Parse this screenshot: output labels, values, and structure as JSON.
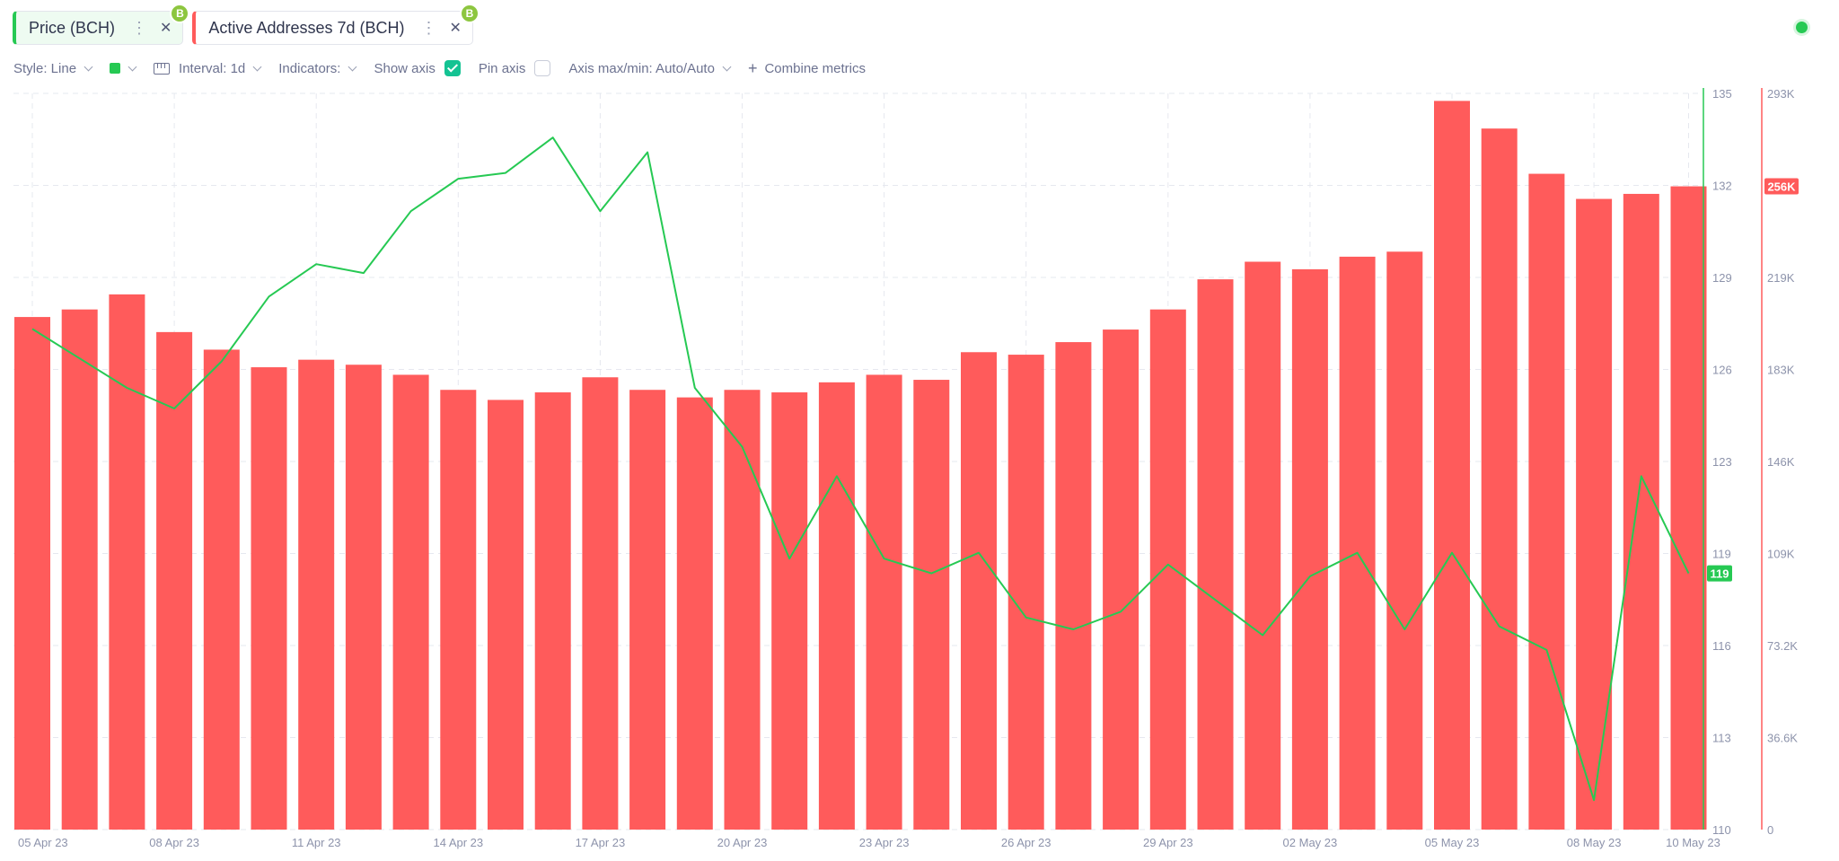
{
  "tabs": [
    {
      "label": "Price (BCH)",
      "coin": "B"
    },
    {
      "label": "Active Addresses 7d (BCH)",
      "coin": "B"
    }
  ],
  "toolbar": {
    "style": "Style: Line",
    "interval": "Interval: 1d",
    "indicators": "Indicators:",
    "show_axis": "Show axis",
    "show_axis_checked": true,
    "pin_axis": "Pin axis",
    "pin_axis_checked": false,
    "axis_maxmin": "Axis max/min: Auto/Auto",
    "combine": "Combine metrics"
  },
  "colors": {
    "price": "#26c953",
    "addresses": "#ff5b5b",
    "accent": "#14c393"
  },
  "chart_data": {
    "type": "bar",
    "grid": true,
    "x_tick_labels": [
      "05 Apr 23",
      "08 Apr 23",
      "11 Apr 23",
      "14 Apr 23",
      "17 Apr 23",
      "20 Apr 23",
      "23 Apr 23",
      "26 Apr 23",
      "29 Apr 23",
      "02 May 23",
      "05 May 23",
      "08 May 23",
      "10 May 23"
    ],
    "x": [
      "05 Apr 23",
      "06 Apr 23",
      "07 Apr 23",
      "08 Apr 23",
      "09 Apr 23",
      "10 Apr 23",
      "11 Apr 23",
      "12 Apr 23",
      "13 Apr 23",
      "14 Apr 23",
      "15 Apr 23",
      "16 Apr 23",
      "17 Apr 23",
      "18 Apr 23",
      "19 Apr 23",
      "20 Apr 23",
      "21 Apr 23",
      "22 Apr 23",
      "23 Apr 23",
      "24 Apr 23",
      "25 Apr 23",
      "26 Apr 23",
      "27 Apr 23",
      "28 Apr 23",
      "29 Apr 23",
      "30 Apr 23",
      "01 May 23",
      "02 May 23",
      "03 May 23",
      "04 May 23",
      "05 May 23",
      "06 May 23",
      "07 May 23",
      "08 May 23",
      "09 May 23",
      "10 May 23"
    ],
    "series": [
      {
        "name": "Price (BCH)",
        "type": "line",
        "axis": "left",
        "color": "#26c953",
        "values": [
          127.0,
          126.0,
          125.0,
          124.3,
          125.9,
          128.1,
          129.2,
          128.9,
          131.0,
          132.1,
          132.3,
          133.5,
          131.0,
          133.0,
          125.0,
          123.0,
          119.2,
          122.0,
          119.2,
          118.7,
          119.4,
          117.2,
          116.8,
          117.4,
          119.0,
          117.8,
          116.6,
          118.6,
          119.4,
          116.8,
          119.4,
          116.9,
          116.1,
          111.0,
          122.0,
          118.7
        ]
      },
      {
        "name": "Active Addresses 7d (BCH)",
        "type": "bar",
        "axis": "right",
        "color": "#ff5b5b",
        "values": [
          204000,
          207000,
          213000,
          198000,
          191000,
          184000,
          187000,
          185000,
          181000,
          175000,
          171000,
          174000,
          180000,
          175000,
          172000,
          175000,
          174000,
          178000,
          181000,
          179000,
          190000,
          189000,
          194000,
          199000,
          207000,
          219000,
          226000,
          223000,
          228000,
          230000,
          290000,
          279000,
          261000,
          251000,
          253000,
          256000
        ]
      }
    ],
    "y_left": {
      "min": 110,
      "max": 135,
      "ticks": [
        "110",
        "113",
        "116",
        "119",
        "123",
        "126",
        "129",
        "132",
        "135"
      ],
      "current": "119"
    },
    "y_right": {
      "min": 0,
      "max": 293000,
      "ticks": [
        "0",
        "36.6K",
        "73.2K",
        "109K",
        "146K",
        "183K",
        "219K",
        "256K",
        "293K"
      ],
      "current": "256K"
    }
  }
}
